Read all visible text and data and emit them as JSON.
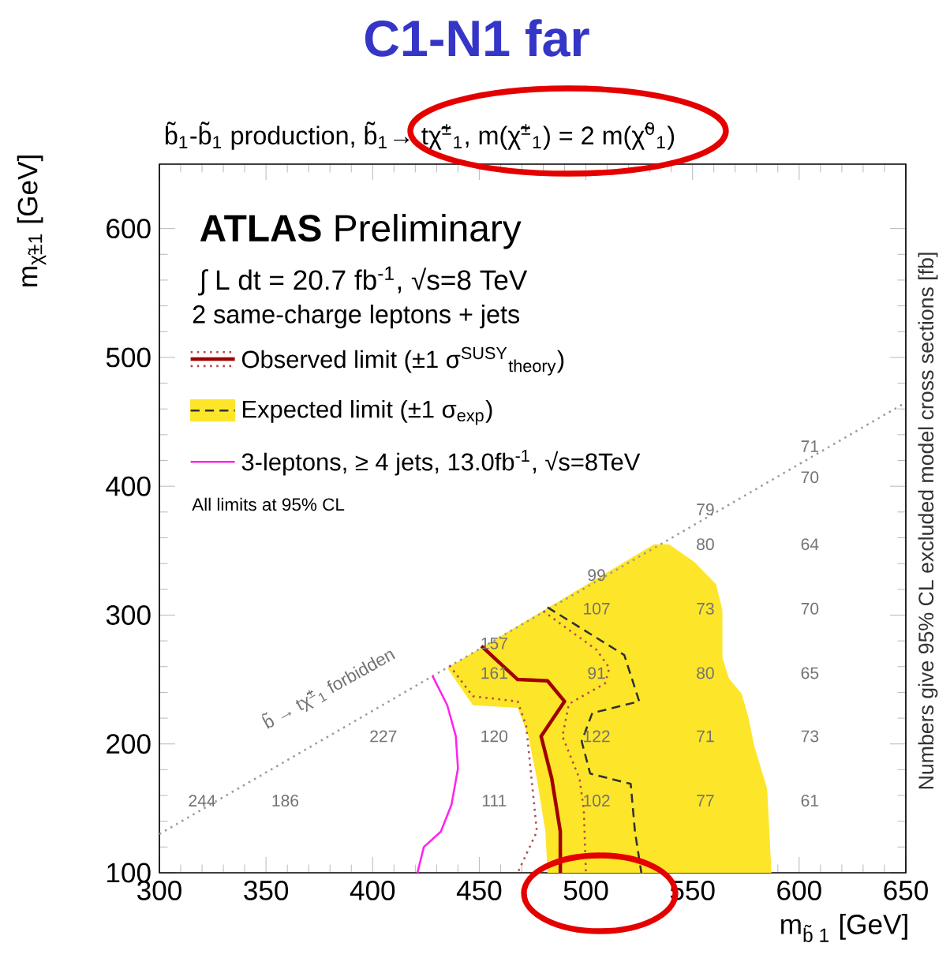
{
  "chart_data": {
    "type": "line",
    "title": "C1-N1 far",
    "subtitle": "b̃$_{1}$-b̃$_{1}$ production, b̃$_{1}$→ tχ̃$^{±}$$_{1}$, m(χ̃$^{±}$$_{1}$) = 2 m(χ̃$^{0}$$_{1}$)",
    "xlabel": "m$_{b̃ 1}$ [GeV]",
    "ylabel": "m$_{χ̃±1}$ [GeV]",
    "y2label": "Numbers give 95% CL excluded model cross sections [fb]",
    "xlim": [
      300,
      650
    ],
    "ylim": [
      100,
      650
    ],
    "xticks": [
      300,
      350,
      400,
      450,
      500,
      550,
      600,
      650
    ],
    "yticks": [
      100,
      200,
      300,
      400,
      500,
      600
    ],
    "legend": "top left",
    "series": [
      {
        "color": "#9a9a9a",
        "line_style": "dotted",
        "x": [
          300,
          650
        ],
        "values": [
          130,
          465
        ]
      },
      {
        "name": "Observed limit (±1 σ$^{SUSY}$$_{theory}$)",
        "color": "#a00000",
        "line_style": "solid",
        "x": [
          451,
          468,
          482,
          490,
          479,
          484,
          488,
          488
        ],
        "values": [
          276,
          250,
          249,
          233,
          206,
          173,
          132,
          100
        ]
      },
      {
        "color": "#b04a4a",
        "line_style": "dotted",
        "x": [
          436,
          447,
          468,
          472,
          475,
          477,
          468
        ],
        "values": [
          261,
          237,
          233,
          214,
          165,
          132,
          100
        ]
      },
      {
        "color": "#b04a4a",
        "line_style": "dotted",
        "x": [
          480,
          505,
          511,
          509,
          492,
          489,
          497,
          499,
          500
        ],
        "values": [
          303,
          273,
          259,
          247,
          231,
          206,
          173,
          149,
          100
        ]
      },
      {
        "name": "Expected limit (±1 σ$_{exp}$)",
        "color": "#303030",
        "line_style": "dashed",
        "x": [
          482,
          518,
          525,
          503,
          498,
          502,
          521,
          523,
          526
        ],
        "values": [
          306,
          269,
          233,
          224,
          202,
          177,
          169,
          132,
          100
        ]
      },
      {
        "type": "area",
        "color": "#fde52a",
        "x": [
          435,
          532,
          539,
          551,
          561,
          564,
          564,
          567,
          573,
          576,
          579,
          585,
          587,
          482,
          481,
          477,
          473,
          468,
          447
        ],
        "values": [
          259,
          355,
          355,
          341,
          324,
          304,
          267,
          251,
          239,
          222,
          198,
          165,
          100,
          100,
          132,
          173,
          206,
          228,
          230
        ]
      },
      {
        "name": "3-leptons, ≥ 4 jets, 13.0fb$^{-1}$, √s=8TeV",
        "color": "#ff22ee",
        "line_style": "solid",
        "x": [
          428,
          435,
          439,
          440,
          437,
          432,
          424,
          421
        ],
        "values": [
          253,
          230,
          206,
          181,
          153,
          132,
          120,
          100
        ]
      }
    ],
    "annotations": [
      "**ATLAS** Preliminary",
      "∫ L dt = 20.7 fb$^{-1}$, √s=8 TeV",
      "2 same-charge leptons + jets",
      "All limits at 95% CL",
      "b̃ → tχ̃$^{±}$$_{1}$ forbidden",
      "244",
      "186",
      "227",
      "120",
      "111",
      "161",
      "157",
      "99",
      "107",
      "91",
      "122",
      "102",
      "79",
      "80",
      "73",
      "80",
      "71",
      "77",
      "71",
      "70",
      "64",
      "70",
      "65",
      "73",
      "61"
    ]
  }
}
